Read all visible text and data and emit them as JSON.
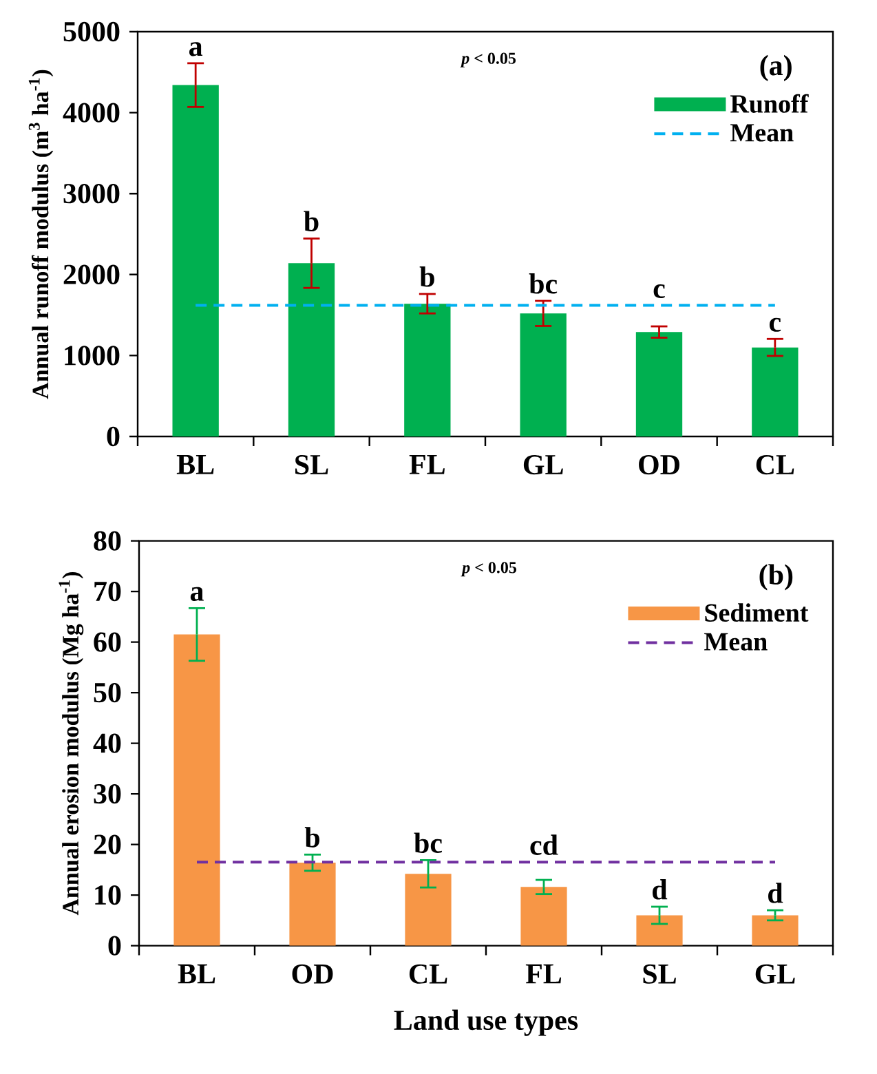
{
  "chart_data": [
    {
      "type": "bar",
      "categories": [
        "BL",
        "SL",
        "FL",
        "GL",
        "OD",
        "CL"
      ],
      "series": [
        {
          "name": "Runoff",
          "color": "#00b050",
          "values": [
            4340,
            2140,
            1640,
            1520,
            1290,
            1100
          ],
          "errors": [
            270,
            305,
            120,
            155,
            70,
            105
          ],
          "value_labels": [
            "a",
            "b",
            "b",
            "bc",
            "c",
            "c"
          ]
        }
      ],
      "ylabel": "Annual runoff modulus (m$^{3}$ ha$^{-1}$)",
      "ylim": [
        0,
        5000
      ],
      "yticks": [
        0,
        1000,
        2000,
        3000,
        4000,
        5000
      ],
      "ref_lines": [
        {
          "axis": "y",
          "value": 1620,
          "label": "Mean",
          "color": "#00b0f0",
          "line_style": "dashed"
        }
      ],
      "annotations": [
        "*p* < 0.05",
        "(a)"
      ],
      "legend": "top right"
    },
    {
      "type": "bar",
      "categories": [
        "BL",
        "OD",
        "CL",
        "FL",
        "SL",
        "GL"
      ],
      "series": [
        {
          "name": "Sediment",
          "color": "#f79646",
          "values": [
            61.5,
            16.4,
            14.2,
            11.6,
            6.0,
            6.0
          ],
          "errors": [
            5.2,
            1.6,
            2.7,
            1.4,
            1.7,
            1.0
          ],
          "value_labels": [
            "a",
            "b",
            "bc",
            "cd",
            "d",
            "d"
          ]
        }
      ],
      "xlabel": "Land use types",
      "ylabel": "Annual erosion modulus (Mg ha$^{-1}$)",
      "ylim": [
        0,
        80
      ],
      "yticks": [
        0,
        10,
        20,
        30,
        40,
        50,
        60,
        70,
        80
      ],
      "ref_lines": [
        {
          "axis": "y",
          "value": 16.5,
          "label": "Mean",
          "color": "#7030a0",
          "line_style": "dashed"
        }
      ],
      "annotations": [
        "*p* < 0.05",
        "(b)"
      ],
      "legend": "top right"
    }
  ]
}
